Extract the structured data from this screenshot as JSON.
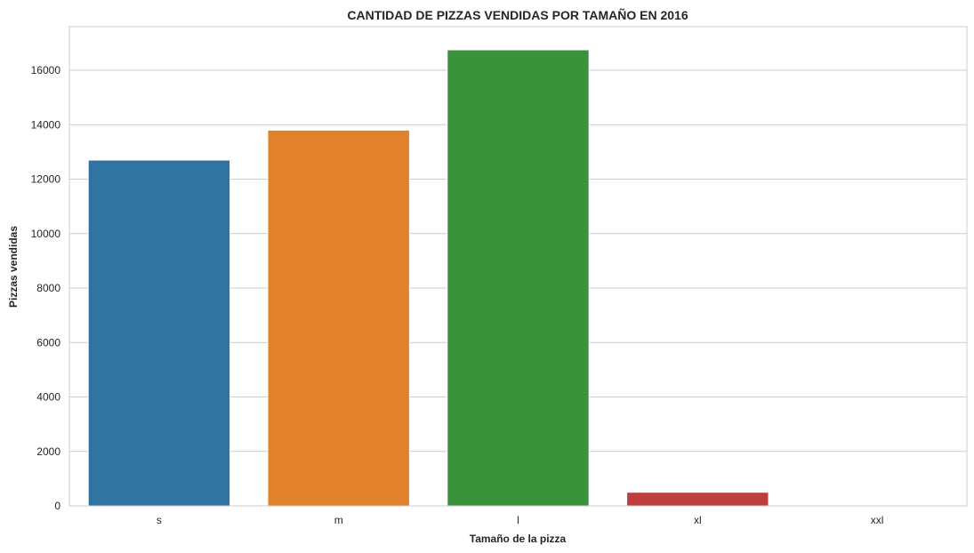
{
  "chart_data": {
    "type": "bar",
    "title": "CANTIDAD DE PIZZAS VENDIDAS POR TAMAÑO EN 2016",
    "xlabel": "Tamaño de la pizza",
    "ylabel": "Pizzas vendidas",
    "categories": [
      "s",
      "m",
      "l",
      "xl",
      "xxl"
    ],
    "values": [
      12700,
      13800,
      16750,
      500,
      28
    ],
    "colors": [
      "#3274a1",
      "#e1812c",
      "#3a923a",
      "#c03d3e",
      "#9372b2"
    ],
    "ylim": [
      0,
      17600
    ],
    "yticks": [
      0,
      2000,
      4000,
      6000,
      8000,
      10000,
      12000,
      14000,
      16000
    ],
    "grid": true,
    "grid_axis": "y",
    "legend": "none"
  }
}
